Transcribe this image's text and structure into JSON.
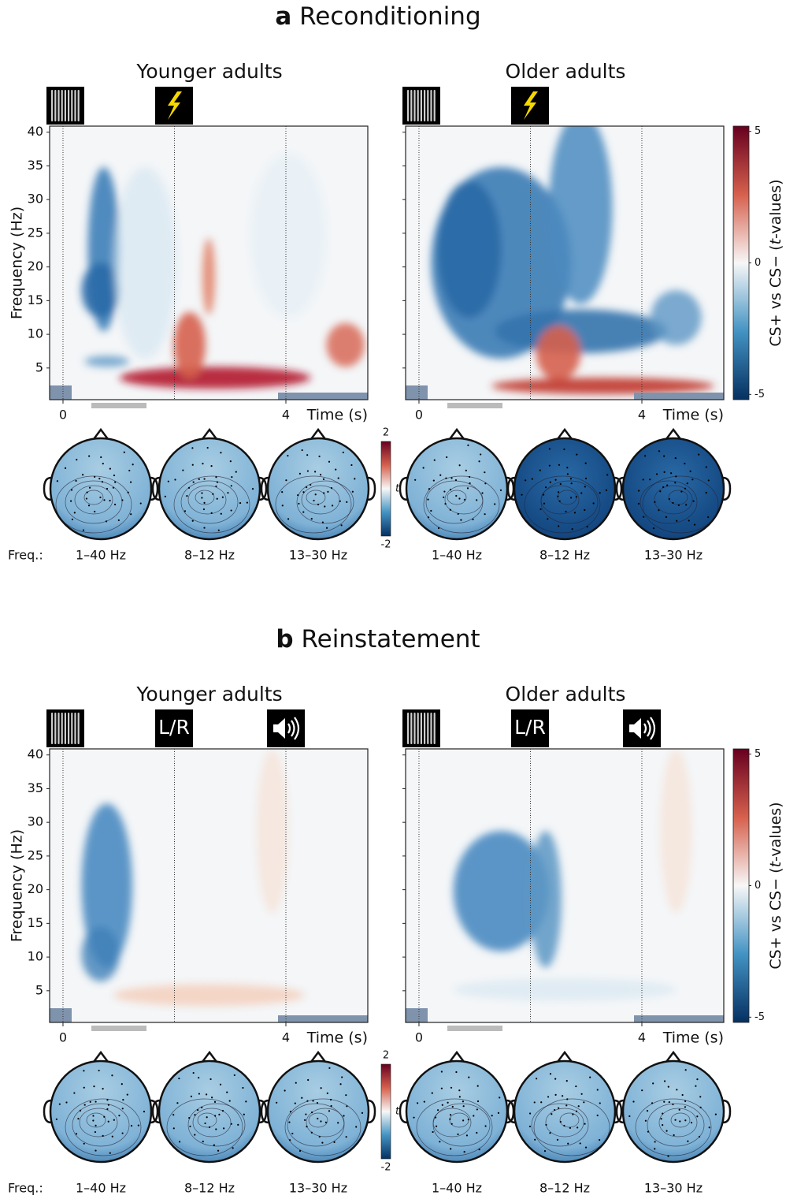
{
  "sections": [
    {
      "label": "a",
      "title": "Reconditioning",
      "groups": [
        {
          "title": "Younger adults"
        },
        {
          "title": "Older adults"
        }
      ]
    },
    {
      "label": "b",
      "title": "Reinstatement",
      "cue_text": "L/R",
      "groups": [
        {
          "title": "Younger adults"
        },
        {
          "title": "Older adults"
        }
      ]
    }
  ],
  "axes": {
    "ylabel": "Frequency (Hz)",
    "yticks": [
      5,
      10,
      15,
      20,
      25,
      30,
      35,
      40
    ],
    "ylim": [
      0.3,
      40.9
    ],
    "xlabel": "Time (s)",
    "xticks": [
      0,
      4
    ],
    "xlim": [
      -0.24,
      5.47
    ]
  },
  "colorbar": {
    "ticks": [
      5,
      0,
      -5
    ],
    "lim": [
      -5.2,
      5.2
    ],
    "label_parts": [
      "CS+ vs CS− (",
      "t",
      "-values)"
    ]
  },
  "topo": {
    "freq_label": "Freq.:",
    "bands": [
      "1–40 Hz",
      "8–12 Hz",
      "13–30 Hz"
    ],
    "colorbar_ticks": [
      2,
      -2
    ],
    "colorbar_lim": [
      -2,
      2
    ],
    "colorbar_label": "t"
  }
}
